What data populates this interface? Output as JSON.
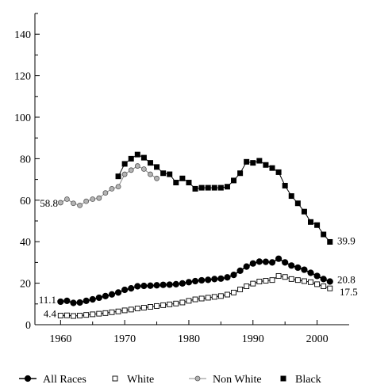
{
  "chart_data": {
    "type": "line",
    "title": "",
    "xlabel": "",
    "ylabel": "",
    "xlim": [
      1956,
      2005
    ],
    "ylim": [
      0,
      150
    ],
    "x_ticks": [
      1960,
      1970,
      1980,
      1990,
      2000
    ],
    "y_ticks": [
      0,
      20,
      40,
      60,
      80,
      100,
      120,
      140
    ],
    "grid": false,
    "legend_position": "bottom",
    "series": [
      {
        "name": "All Races",
        "marker": "filled-circle",
        "color": "#000000",
        "x": [
          1960,
          1961,
          1962,
          1963,
          1964,
          1965,
          1966,
          1967,
          1968,
          1969,
          1970,
          1971,
          1972,
          1973,
          1974,
          1975,
          1976,
          1977,
          1978,
          1979,
          1980,
          1981,
          1982,
          1983,
          1984,
          1985,
          1986,
          1987,
          1988,
          1989,
          1990,
          1991,
          1992,
          1993,
          1994,
          1995,
          1996,
          1997,
          1998,
          1999,
          2000,
          2001,
          2002
        ],
        "y": [
          11.1,
          11.5,
          10.5,
          10.7,
          11.5,
          12.2,
          13.0,
          13.8,
          14.6,
          15.5,
          16.8,
          17.5,
          18.5,
          18.7,
          18.8,
          19.0,
          19.2,
          19.3,
          19.5,
          19.9,
          20.5,
          21.0,
          21.4,
          21.6,
          22.0,
          22.2,
          22.8,
          24.0,
          26.0,
          28.0,
          29.5,
          30.4,
          30.3,
          30.0,
          31.8,
          30.0,
          28.5,
          27.5,
          26.5,
          25.0,
          23.5,
          22.0,
          20.8
        ]
      },
      {
        "name": "White",
        "marker": "open-square",
        "color": "#000000",
        "x": [
          1960,
          1961,
          1962,
          1963,
          1964,
          1965,
          1966,
          1967,
          1968,
          1969,
          1970,
          1971,
          1972,
          1973,
          1974,
          1975,
          1976,
          1977,
          1978,
          1979,
          1980,
          1981,
          1982,
          1983,
          1984,
          1985,
          1986,
          1987,
          1988,
          1989,
          1990,
          1991,
          1992,
          1993,
          1994,
          1995,
          1996,
          1997,
          1998,
          1999,
          2000,
          2001,
          2002
        ],
        "y": [
          4.4,
          4.5,
          4.2,
          4.4,
          4.7,
          5.0,
          5.3,
          5.6,
          6.0,
          6.4,
          6.9,
          7.3,
          7.8,
          8.2,
          8.6,
          9.0,
          9.4,
          9.8,
          10.2,
          10.7,
          11.5,
          12.2,
          12.6,
          13.0,
          13.4,
          13.8,
          14.5,
          15.5,
          17.0,
          18.5,
          19.8,
          20.8,
          21.2,
          21.5,
          23.5,
          23.0,
          22.0,
          21.5,
          21.0,
          20.5,
          19.5,
          18.5,
          17.5
        ]
      },
      {
        "name": "Non White",
        "marker": "gray-circle",
        "color": "#888888",
        "x": [
          1960,
          1961,
          1962,
          1963,
          1964,
          1965,
          1966,
          1967,
          1968,
          1969,
          1970,
          1971,
          1972,
          1973,
          1974,
          1975
        ],
        "y": [
          58.8,
          60.5,
          58.5,
          57.5,
          59.5,
          60.5,
          61.0,
          63.5,
          65.5,
          66.5,
          72.5,
          74.5,
          76.5,
          75.0,
          72.5,
          70.5
        ]
      },
      {
        "name": "Black",
        "marker": "filled-square",
        "color": "#000000",
        "x": [
          1969,
          1970,
          1971,
          1972,
          1973,
          1974,
          1975,
          1976,
          1977,
          1978,
          1979,
          1980,
          1981,
          1982,
          1983,
          1984,
          1985,
          1986,
          1987,
          1988,
          1989,
          1990,
          1991,
          1992,
          1993,
          1994,
          1995,
          1996,
          1997,
          1998,
          1999,
          2000,
          2001,
          2002
        ],
        "y": [
          71.5,
          77.5,
          80.0,
          82.0,
          80.5,
          78.0,
          76.0,
          73.0,
          72.5,
          68.5,
          70.5,
          68.5,
          65.5,
          66.0,
          66.0,
          66.0,
          66.0,
          66.5,
          69.5,
          73.0,
          78.5,
          78.0,
          79.0,
          77.0,
          75.5,
          73.5,
          67.0,
          62.0,
          58.5,
          54.5,
          49.5,
          48.0,
          43.5,
          39.9
        ]
      }
    ],
    "annotations": {
      "non_white_start": "58.8",
      "all_races_start": "11.1",
      "white_start": "4.4",
      "black_end": "39.9",
      "all_races_end": "20.8",
      "white_end": "17.5"
    }
  }
}
